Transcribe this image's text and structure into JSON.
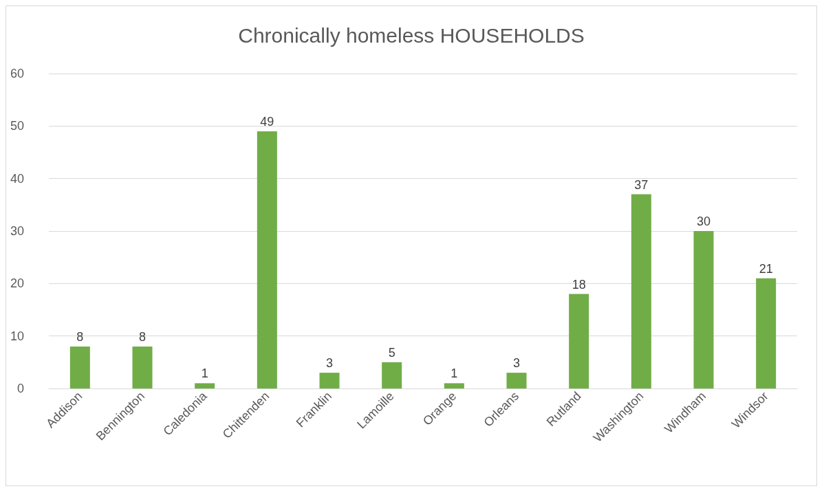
{
  "chart_data": {
    "type": "bar",
    "title": "Chronically homeless HOUSEHOLDS",
    "categories": [
      "Addison",
      "Bennington",
      "Caledonia",
      "Chittenden",
      "Franklin",
      "Lamoille",
      "Orange",
      "Orleans",
      "Rutland",
      "Washington",
      "Windham",
      "Windsor"
    ],
    "values": [
      8,
      8,
      1,
      49,
      3,
      5,
      1,
      3,
      18,
      37,
      30,
      21
    ],
    "color": "#70ad47",
    "ylim": [
      0,
      60
    ],
    "yticks": [
      0,
      10,
      20,
      30,
      40,
      50,
      60
    ],
    "grid": "y",
    "data_labels": true
  }
}
